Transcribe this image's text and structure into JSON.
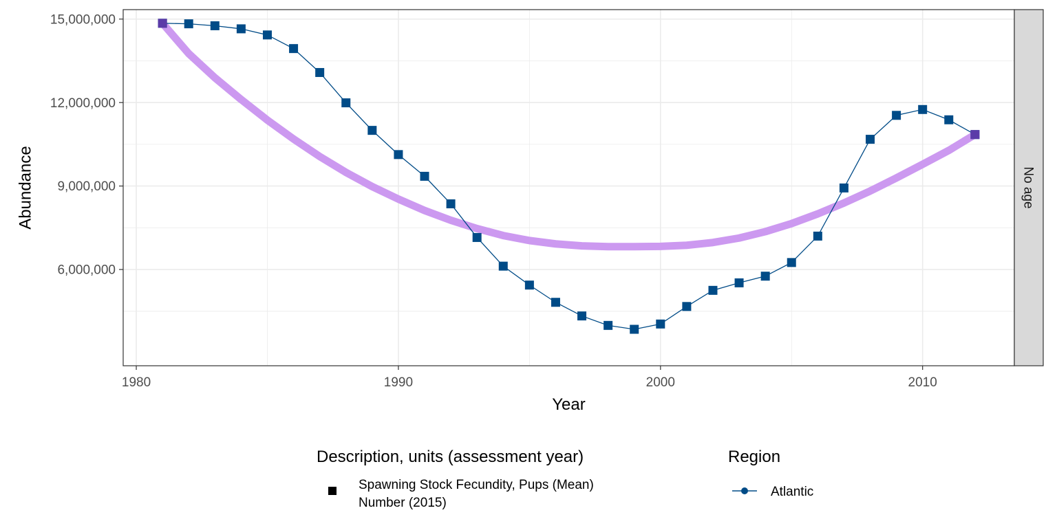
{
  "chart_data": {
    "type": "line",
    "xlabel": "Year",
    "ylabel": "Abundance",
    "xlim": [
      1979.5,
      2013.5
    ],
    "ylim": [
      2540000,
      15340000
    ],
    "x_ticks": [
      1980,
      1990,
      2000,
      2010
    ],
    "x_tick_labels": [
      "1980",
      "1990",
      "2000",
      "2010"
    ],
    "y_ticks": [
      6000000,
      9000000,
      12000000,
      15000000
    ],
    "y_tick_labels": [
      "6,000,000",
      "9,000,000",
      "12,000,000",
      "15,000,000"
    ],
    "grid": true,
    "facet_label": "No age",
    "series": [
      {
        "name": "Atlantic",
        "color": "#004b87",
        "marker": "square",
        "x": [
          1981,
          1982,
          1983,
          1984,
          1985,
          1986,
          1987,
          1988,
          1989,
          1990,
          1991,
          1992,
          1993,
          1994,
          1995,
          1996,
          1997,
          1998,
          1999,
          2000,
          2001,
          2002,
          2003,
          2004,
          2005,
          2006,
          2007,
          2008,
          2009,
          2010,
          2011,
          2012
        ],
        "y": [
          14850000,
          14830000,
          14760000,
          14650000,
          14430000,
          13940000,
          13080000,
          11990000,
          11000000,
          10130000,
          9350000,
          8360000,
          7150000,
          6120000,
          5440000,
          4820000,
          4330000,
          3990000,
          3850000,
          4040000,
          4670000,
          5250000,
          5520000,
          5760000,
          6250000,
          7200000,
          8930000,
          10680000,
          11540000,
          11750000,
          11380000,
          10850000
        ]
      },
      {
        "name": "",
        "color": "#cc99f0",
        "type": "smooth",
        "x": [
          1981,
          1982,
          1983,
          1984,
          1985,
          1986,
          1987,
          1988,
          1989,
          1990,
          1991,
          1992,
          1993,
          1994,
          1995,
          1996,
          1997,
          1998,
          1999,
          2000,
          2001,
          2002,
          2003,
          2004,
          2005,
          2006,
          2007,
          2008,
          2009,
          2010,
          2011,
          2012
        ],
        "y": [
          14850000,
          13760000,
          12890000,
          12110000,
          11370000,
          10690000,
          10060000,
          9490000,
          8980000,
          8530000,
          8120000,
          7770000,
          7470000,
          7220000,
          7040000,
          6920000,
          6850000,
          6820000,
          6820000,
          6830000,
          6870000,
          6970000,
          7130000,
          7360000,
          7650000,
          8000000,
          8390000,
          8820000,
          9290000,
          9780000,
          10280000,
          10850000
        ]
      }
    ],
    "endpoints": {
      "color": "#5b3ba8",
      "x": [
        1981,
        2012
      ],
      "y": [
        14850000,
        10850000
      ]
    },
    "legend": {
      "placement": "bottom",
      "description": {
        "title": "Description, units (assessment year)",
        "label_line1": "Spawning Stock Fecundity, Pups (Mean)",
        "label_line2": "Number (2015)"
      },
      "region": {
        "title": "Region",
        "label": "Atlantic"
      }
    }
  },
  "colors": {
    "panel_border": "#333333",
    "grid_major": "#ebebeb",
    "grid_minor": "#f5f5f5",
    "strip_fill": "#d9d9d9",
    "axis_text": "#4d4d4d"
  }
}
